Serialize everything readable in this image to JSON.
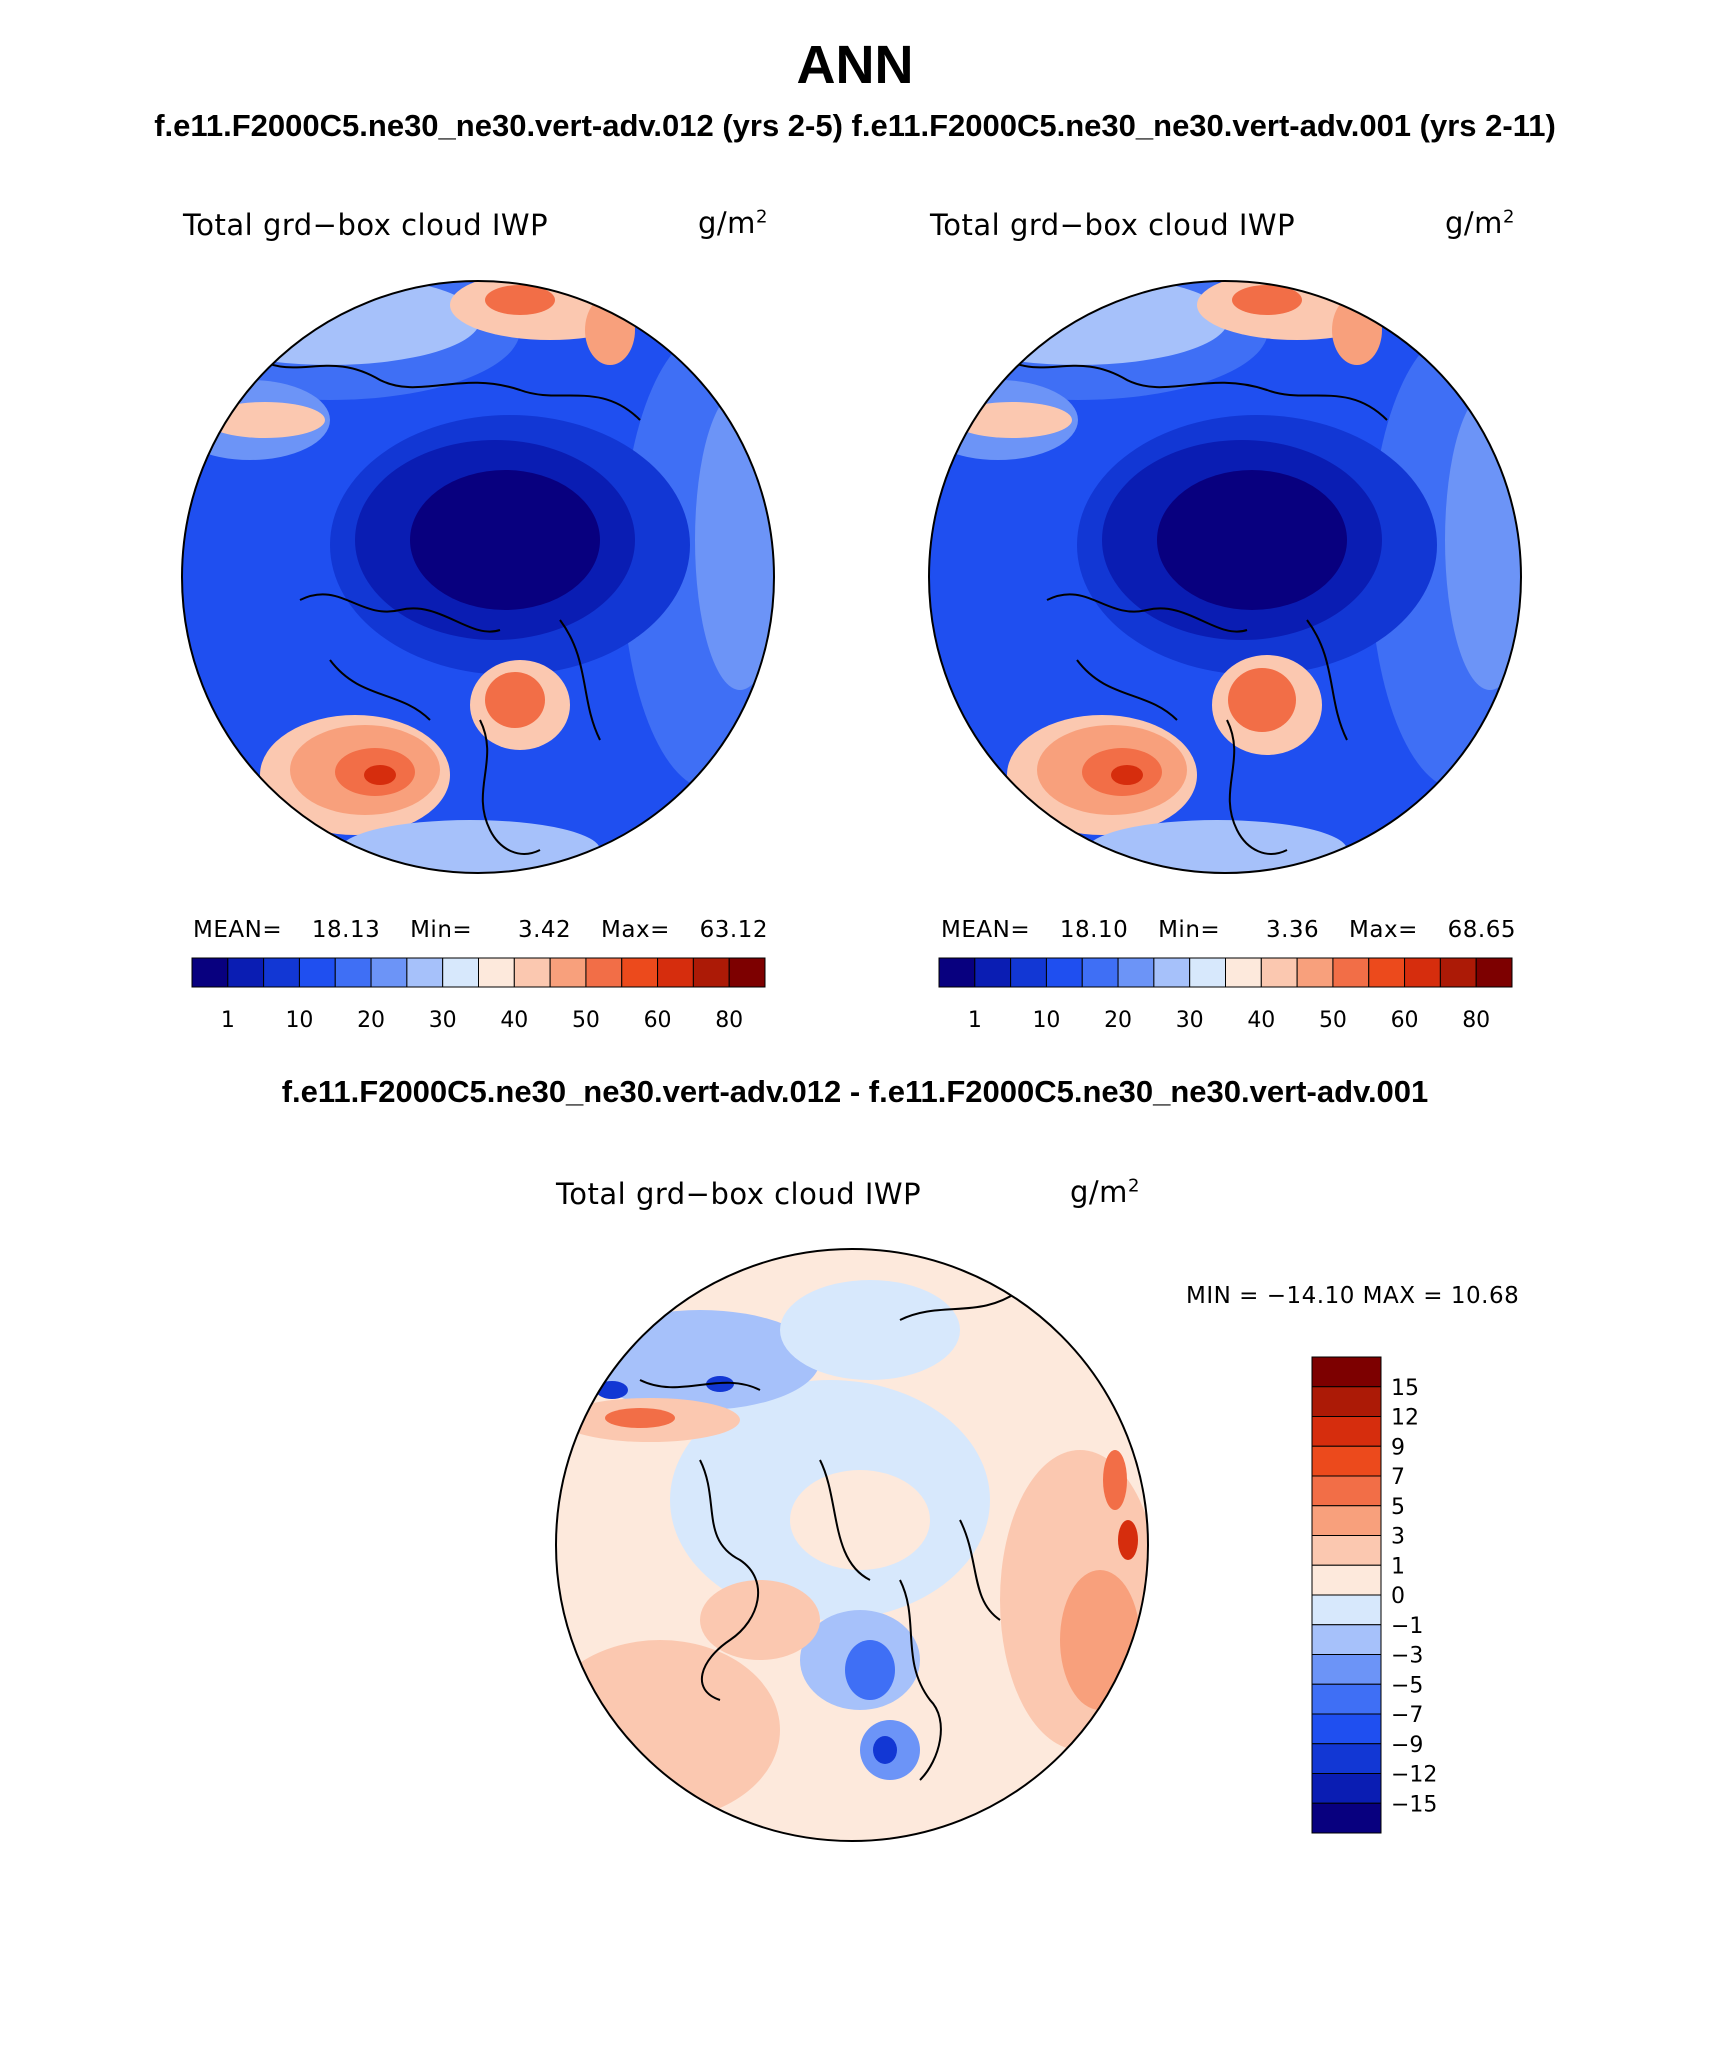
{
  "figure": {
    "title": "ANN",
    "case_titles": "f.e11.F2000C5.ne30_ne30.vert-adv.012 (yrs 2-5) f.e11.F2000C5.ne30_ne30.vert-adv.001 (yrs 2-11)",
    "diff_title": "f.e11.F2000C5.ne30_ne30.vert-adv.012 - f.e11.F2000C5.ne30_ne30.vert-adv.001"
  },
  "panels": [
    {
      "variable": "Total grd−box cloud IWP",
      "units_base": "g/m",
      "units_exp": "2",
      "mean_label": "MEAN=",
      "mean_value": "18.13",
      "min_label": "Min=",
      "min_value": "3.42",
      "max_label": "Max=",
      "max_value": "63.12"
    },
    {
      "variable": "Total grd−box cloud IWP",
      "units_base": "g/m",
      "units_exp": "2",
      "mean_label": "MEAN=",
      "mean_value": "18.10",
      "min_label": "Min=",
      "min_value": "3.36",
      "max_label": "Max=",
      "max_value": "68.65"
    },
    {
      "variable": "Total grd−box cloud IWP",
      "units_base": "g/m",
      "units_exp": "2",
      "min_max_text": "MIN = −14.10  MAX =   10.68"
    }
  ],
  "colorbar_abs": {
    "colors": [
      "#08007f",
      "#0a1db3",
      "#1237d4",
      "#1f4ff0",
      "#3f6ff5",
      "#6c94f7",
      "#a6c1fa",
      "#d7e8fc",
      "#fde9dc",
      "#fbc8b0",
      "#f8a07c",
      "#f26e47",
      "#ec4a1c",
      "#d62d0d",
      "#ac1a06",
      "#7d0000"
    ],
    "tick_labels": [
      "1",
      "10",
      "20",
      "30",
      "40",
      "50",
      "60",
      "80"
    ]
  },
  "colorbar_diff": {
    "colors": [
      "#7d0000",
      "#ac1a06",
      "#d62d0d",
      "#ec4a1c",
      "#f26e47",
      "#f8a07c",
      "#fbc8b0",
      "#fde9dc",
      "#d7e8fc",
      "#a6c1fa",
      "#6c94f7",
      "#3f6ff5",
      "#1f4ff0",
      "#1237d4",
      "#0a1db3",
      "#08007f"
    ],
    "tick_labels": [
      "15",
      "12",
      "9",
      "7",
      "5",
      "3",
      "1",
      "0",
      "−1",
      "−3",
      "−5",
      "−7",
      "−9",
      "−12",
      "−15"
    ]
  },
  "map_colors": {
    "deep": "#08007f",
    "dark": "#0a1db3",
    "blue": "#1237d4",
    "mid": "#1f4ff0",
    "light": "#3f6ff5",
    "pale": "#6c94f7",
    "paler": "#a6c1fa",
    "ice": "#d7e8fc",
    "peach": "#fde9dc",
    "salmon": "#fbc8b0",
    "orange": "#f8a07c",
    "red": "#f26e47",
    "crimson": "#d62d0d"
  }
}
